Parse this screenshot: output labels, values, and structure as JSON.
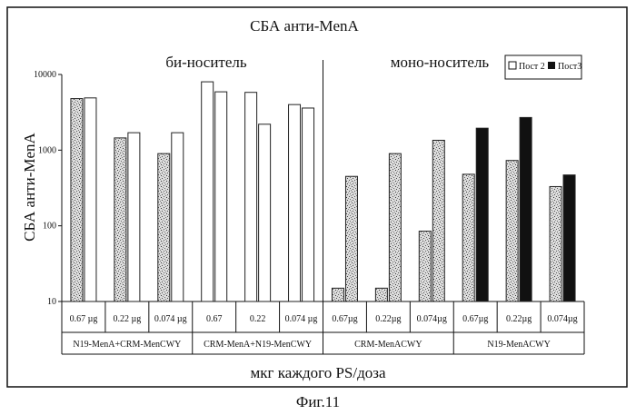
{
  "chart_data": {
    "type": "bar",
    "title": "СБА анти-MenA",
    "ylabel": "СБА анти-MenA",
    "xlabel": "мкг каждого PS/доза",
    "caption": "Фиг.11",
    "yscale": "log",
    "ylim": [
      10,
      10000
    ],
    "yticks": [
      "10",
      "100",
      "1000",
      "10000"
    ],
    "section_labels": [
      "би-носитель",
      "моно-носитель"
    ],
    "groups": [
      "N19-MenA+CRM-MenCWY",
      "CRM-MenA+N19-MenCWY",
      "CRM-MenACWY",
      "N19-MenACWY"
    ],
    "categories": [
      "0.67 µg",
      "0.22 µg",
      "0.074 µg",
      "0.67",
      "0.22",
      "0.074 µg",
      "0.67µg",
      "0.22µg",
      "0.074µg",
      "0.67µg",
      "0.22µg",
      "0.074µg"
    ],
    "series": [
      {
        "name": "Пост 2",
        "values": [
          4800,
          1450,
          900,
          8000,
          5800,
          4000,
          15,
          15,
          85,
          480,
          730,
          330
        ]
      },
      {
        "name": "Пост3",
        "values": [
          4900,
          1700,
          1700,
          5900,
          2200,
          3600,
          450,
          900,
          1350,
          1950,
          2700,
          470
        ]
      }
    ],
    "legend": "top-right",
    "grid": false
  }
}
